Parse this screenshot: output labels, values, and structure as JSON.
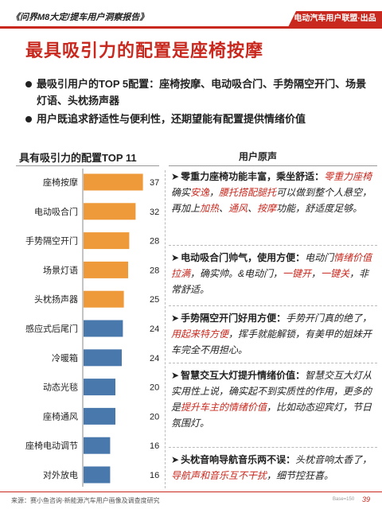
{
  "header": {
    "report_title": "《问界M8大定/提车用户洞察报告》",
    "brand": "电动汽车用户联盟·出品"
  },
  "page_title": "最具吸引力的配置是座椅按摩",
  "bullets": [
    "最吸引用户的TOP 5配置：座椅按摩、电动吸合门、手势隔空开门、场景灯语、头枕扬声器",
    "用户既追求舒适性与便利性，还期望能有配置提供情绪价值"
  ],
  "chart_title": "具有吸引力的配置TOP 11",
  "voice_title": "用户原声",
  "colors": {
    "accent": "#c8281e",
    "bar_top5": "#ef9a3a",
    "bar_rest": "#4978ad"
  },
  "chart_data": {
    "type": "bar",
    "orientation": "horizontal",
    "title": "具有吸引力的配置TOP 11",
    "categories": [
      "座椅按摩",
      "电动吸合门",
      "手势隔空开门",
      "场景灯语",
      "头枕扬声器",
      "感应式后尾门",
      "冷暖箱",
      "动态光毯",
      "座椅通风",
      "座椅电动调节",
      "对外放电"
    ],
    "values": [
      37.3,
      32.7,
      28.7,
      28.0,
      25.3,
      24.7,
      24.0,
      20.0,
      20.0,
      16.7,
      16.7
    ],
    "labels": [
      "37.3%",
      "32.7%",
      "28.7%",
      "28.0%",
      "25.3%",
      "24.7%",
      "24.0%",
      "20.0%",
      "20.0%",
      "16.7%",
      "16.7%"
    ],
    "highlight_top": 5,
    "xlim": [
      0,
      40
    ]
  },
  "quotes": [
    {
      "head": "零重力座椅功能丰富，乘坐舒适：",
      "parts": [
        {
          "t": "零重力座椅",
          "hl": true
        },
        {
          "t": "确实",
          "hl": false
        },
        {
          "t": "安逸",
          "hl": true
        },
        {
          "t": "，",
          "hl": false
        },
        {
          "t": "腰托搭配腿托",
          "hl": true
        },
        {
          "t": "可以做到整个人悬空，再加上",
          "hl": false
        },
        {
          "t": "加热",
          "hl": true
        },
        {
          "t": "、",
          "hl": false
        },
        {
          "t": "通风",
          "hl": true
        },
        {
          "t": "、",
          "hl": false
        },
        {
          "t": "按摩",
          "hl": true
        },
        {
          "t": "功能，舒适度足够。",
          "hl": false
        }
      ]
    },
    {
      "head": "电动吸合门帅气，使用方便：",
      "parts": [
        {
          "t": "电动门",
          "hl": false
        },
        {
          "t": "情绪价值拉满",
          "hl": true
        },
        {
          "t": "，确实帅。&电动门，",
          "hl": false
        },
        {
          "t": "一键开",
          "hl": true
        },
        {
          "t": "，",
          "hl": false
        },
        {
          "t": "一键关",
          "hl": true
        },
        {
          "t": "，非常舒适。",
          "hl": false
        }
      ]
    },
    {
      "head": "手势隔空开门好用方便：",
      "parts": [
        {
          "t": "手势开门真的绝了，",
          "hl": false
        },
        {
          "t": "用起来特方便",
          "hl": true
        },
        {
          "t": "，挥手就能解锁，有美甲的姐妹开车完全不用担心。",
          "hl": false
        }
      ]
    },
    {
      "head": "智慧交互大灯提升情绪价值：",
      "parts": [
        {
          "t": "智慧交互大灯从实用性上说，确实起不到实质性的作用，更多的是",
          "hl": false
        },
        {
          "t": "提升车主的情绪价值",
          "hl": true
        },
        {
          "t": "，比如动态迎宾灯，节日氛围灯。",
          "hl": false
        }
      ]
    },
    {
      "head": "头枕音响导航音乐两不误：",
      "parts": [
        {
          "t": "头枕音响太香了，",
          "hl": false
        },
        {
          "t": "导航声和音乐互不干扰",
          "hl": true
        },
        {
          "t": "，细节控狂喜。",
          "hl": false
        }
      ]
    }
  ],
  "footer": {
    "source": "来源：赛小鱼咨询·新能源汽车用户画像及调查度研究",
    "base": "Base=150",
    "page": "39"
  }
}
